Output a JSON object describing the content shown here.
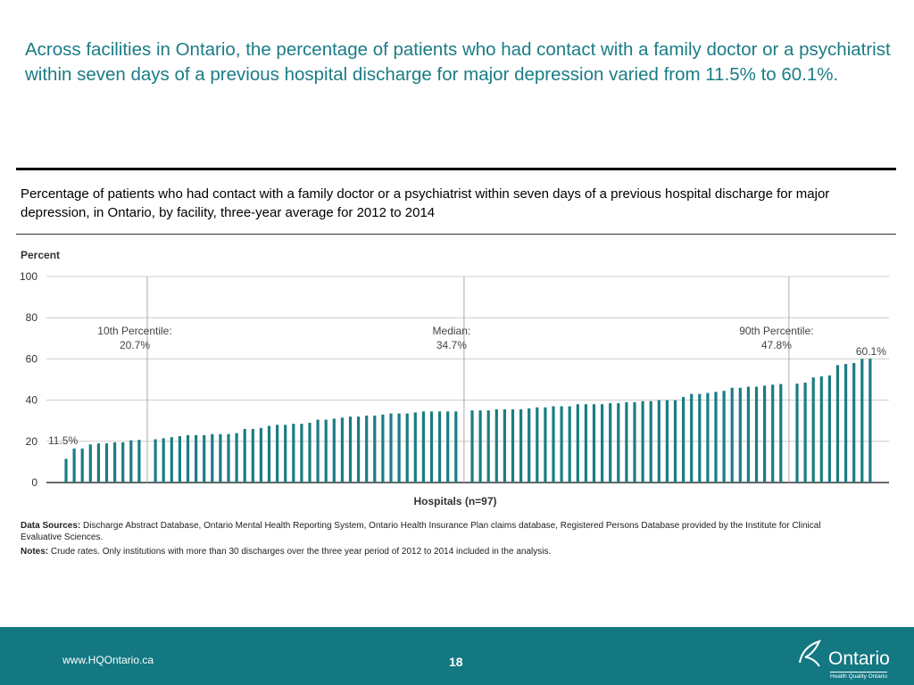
{
  "header": {
    "title": "Across facilities in Ontario, the percentage of patients who had contact with a family doctor or a psychiatrist within seven days of a previous hospital discharge for major depression varied from 11.5% to 60.1%."
  },
  "chart_data": {
    "type": "bar",
    "title": "Percentage of patients who had contact with a family doctor or a psychiatrist within seven days of a previous hospital discharge for major depression, in Ontario, by facility, three-year average for 2012 to 2014",
    "y_label": "Percent",
    "x_label": "Hospitals (n=97)",
    "color": "#1b7c85",
    "grid": true,
    "ylim": [
      0,
      100
    ],
    "yticks": [
      0,
      20,
      40,
      60,
      80,
      100
    ],
    "values": [
      11.5,
      16.5,
      16.5,
      18.5,
      19,
      19,
      19.5,
      19.5,
      20.5,
      20.7,
      21,
      21.5,
      22,
      22.5,
      23,
      23,
      23,
      23.5,
      23.5,
      23.5,
      24,
      26,
      26,
      26.5,
      27.5,
      28,
      28,
      28.5,
      28.5,
      29,
      30.5,
      30.5,
      31,
      31.5,
      32,
      32,
      32.5,
      32.5,
      33,
      33.5,
      33.5,
      33.5,
      34,
      34.5,
      34.5,
      34.5,
      34.5,
      34.5,
      35,
      35,
      35,
      35.5,
      35.5,
      35.5,
      35.5,
      36,
      36.5,
      36.5,
      37,
      37,
      37,
      38,
      38,
      38,
      38,
      38.5,
      38.5,
      39,
      39,
      39.5,
      39.5,
      40,
      40,
      40,
      41.5,
      43,
      43,
      43.5,
      44,
      44.5,
      46,
      46,
      46.5,
      46.5,
      47,
      47.5,
      47.8,
      48,
      48.5,
      51,
      51.5,
      52,
      57,
      57.5,
      58,
      60,
      60.1
    ],
    "reference_lines": [
      {
        "label": "10th Percentile:",
        "value": 20.7,
        "value_label": "20.7%"
      },
      {
        "label": "Median:",
        "value": 34.7,
        "value_label": "34.7%"
      },
      {
        "label": "90th Percentile:",
        "value": 47.8,
        "value_label": "47.8%"
      }
    ],
    "min_label": "11.5%",
    "max_label": "60.1%"
  },
  "sources": {
    "label": "Data Sources:",
    "text": "Discharge Abstract Database, Ontario Mental Health Reporting System, Ontario Health Insurance Plan claims database, Registered Persons Database provided by the Institute for Clinical Evaluative Sciences.",
    "notes_label": "Notes:",
    "notes": "Crude rates. Only institutions with more than 30 discharges over the three year period of 2012 to 2014 included in the analysis."
  },
  "footer": {
    "url": "www.HQOntario.ca",
    "page": "18",
    "logo": "Ontario",
    "logo_sub": "Health Quality Ontario"
  }
}
